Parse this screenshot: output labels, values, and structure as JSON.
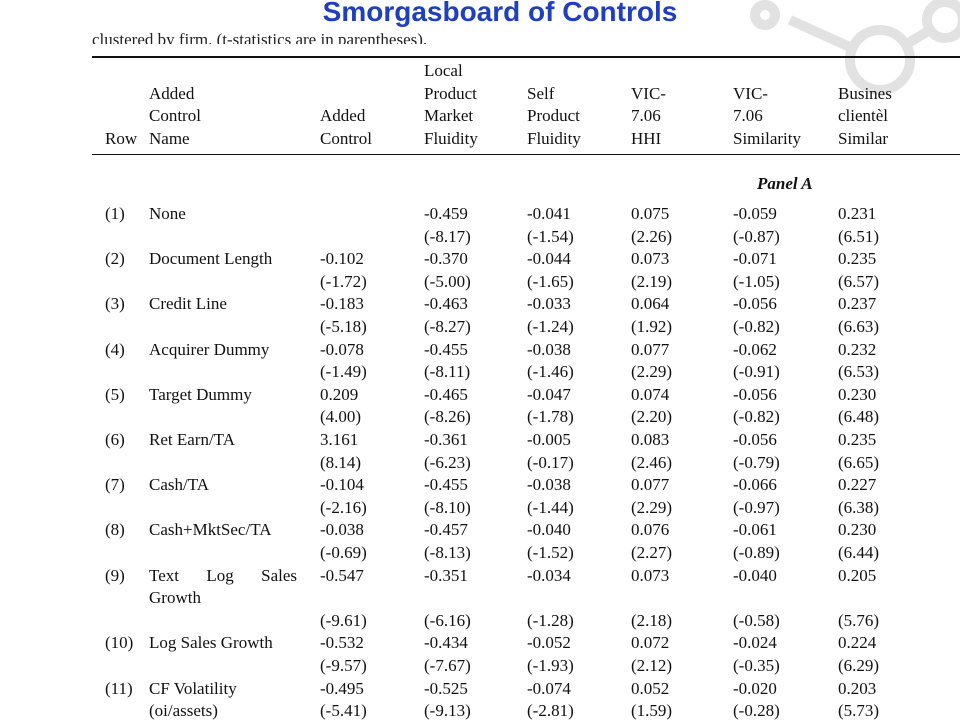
{
  "title": "Smorgasboard of Controls",
  "caption": "clustered by firm. (t-statistics are in parentheses).",
  "table": {
    "headers": [
      [
        "Row"
      ],
      [
        "Added",
        "Control",
        "Name"
      ],
      [
        "Added",
        "Control"
      ],
      [
        "Local",
        "Product",
        "Market",
        "Fluidity"
      ],
      [
        "Self",
        "Product",
        "Fluidity"
      ],
      [
        "VIC-",
        "7.06",
        "HHI"
      ],
      [
        "VIC-",
        "7.06",
        "Similarity"
      ],
      [
        "Busines",
        "clientèl",
        "Similar"
      ]
    ],
    "panel": "Panel A",
    "rows": [
      {
        "row": "(1)",
        "name": "None",
        "coef": [
          null,
          "-0.459",
          "-0.041",
          "0.075",
          "-0.059",
          "0.231"
        ],
        "t": [
          null,
          "(-8.17)",
          "(-1.54)",
          "(2.26)",
          "(-0.87)",
          "(6.51)"
        ]
      },
      {
        "row": "(2)",
        "name": "Document Length",
        "coef": [
          "-0.102",
          "-0.370",
          "-0.044",
          "0.073",
          "-0.071",
          "0.235"
        ],
        "t": [
          "(-1.72)",
          "(-5.00)",
          "(-1.65)",
          "(2.19)",
          "(-1.05)",
          "(6.57)"
        ]
      },
      {
        "row": "(3)",
        "name": "Credit Line",
        "coef": [
          "-0.183",
          "-0.463",
          "-0.033",
          "0.064",
          "-0.056",
          "0.237"
        ],
        "t": [
          "(-5.18)",
          "(-8.27)",
          "(-1.24)",
          "(1.92)",
          "(-0.82)",
          "(6.63)"
        ]
      },
      {
        "row": "(4)",
        "name": "Acquirer Dummy",
        "coef": [
          "-0.078",
          "-0.455",
          "-0.038",
          "0.077",
          "-0.062",
          "0.232"
        ],
        "t": [
          "(-1.49)",
          "(-8.11)",
          "(-1.46)",
          "(2.29)",
          "(-0.91)",
          "(6.53)"
        ]
      },
      {
        "row": "(5)",
        "name": "Target Dummy",
        "coef": [
          "0.209",
          "-0.465",
          "-0.047",
          "0.074",
          "-0.056",
          "0.230"
        ],
        "t": [
          "(4.00)",
          "(-8.26)",
          "(-1.78)",
          "(2.20)",
          "(-0.82)",
          "(6.48)"
        ]
      },
      {
        "row": "(6)",
        "name": "Ret Earn/TA",
        "coef": [
          "3.161",
          "-0.361",
          "-0.005",
          "0.083",
          "-0.056",
          "0.235"
        ],
        "t": [
          "(8.14)",
          "(-6.23)",
          "(-0.17)",
          "(2.46)",
          "(-0.79)",
          "(6.65)"
        ]
      },
      {
        "row": "(7)",
        "name": "Cash/TA",
        "coef": [
          "-0.104",
          "-0.455",
          "-0.038",
          "0.077",
          "-0.066",
          "0.227"
        ],
        "t": [
          "(-2.16)",
          "(-8.10)",
          "(-1.44)",
          "(2.29)",
          "(-0.97)",
          "(6.38)"
        ]
      },
      {
        "row": "(8)",
        "name": "Cash+MktSec/TA",
        "coef": [
          "-0.038",
          "-0.457",
          "-0.040",
          "0.076",
          "-0.061",
          "0.230"
        ],
        "t": [
          "(-0.69)",
          "(-8.13)",
          "(-1.52)",
          "(2.27)",
          "(-0.89)",
          "(6.44)"
        ]
      },
      {
        "row": "(9)",
        "name": "Text Log Sales Growth",
        "coef": [
          "-0.547",
          "-0.351",
          "-0.034",
          "0.073",
          "-0.040",
          "0.205"
        ],
        "t": [
          "(-9.61)",
          "(-6.16)",
          "(-1.28)",
          "(2.18)",
          "(-0.58)",
          "(5.76)"
        ]
      },
      {
        "row": "(10)",
        "name": "Log Sales Growth",
        "coef": [
          "-0.532",
          "-0.434",
          "-0.052",
          "0.072",
          "-0.024",
          "0.224"
        ],
        "t": [
          "(-9.57)",
          "(-7.67)",
          "(-1.93)",
          "(2.12)",
          "(-0.35)",
          "(6.29)"
        ]
      },
      {
        "row": "(11)",
        "name": "CF Volatility",
        "name_cont": "(oi/assets)",
        "coef": [
          "-0.495",
          "-0.525",
          "-0.074",
          "0.052",
          "-0.020",
          "0.203"
        ],
        "t": [
          "(-5.41)",
          "(-9.13)",
          "(-2.81)",
          "(1.59)",
          "(-0.28)",
          "(5.73)"
        ]
      }
    ]
  }
}
